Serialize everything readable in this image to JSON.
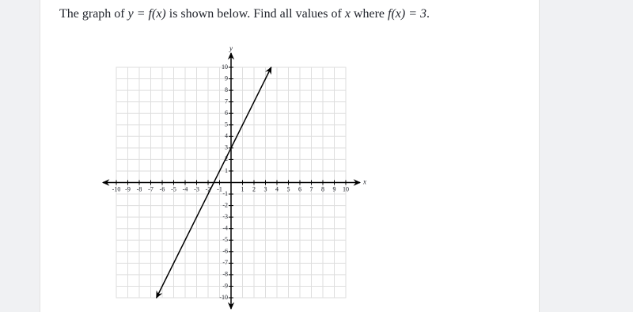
{
  "question": [
    {
      "text": "The graph of "
    },
    {
      "math": "y = f(x)"
    },
    {
      "text": " is shown below. Find all values of "
    },
    {
      "math": "x"
    },
    {
      "text": " where "
    },
    {
      "math": "f(x) = 3"
    },
    {
      "text": "."
    }
  ],
  "chart_data": {
    "type": "line",
    "x_label": "x",
    "y_label": "y",
    "xlim": [
      -10,
      10
    ],
    "ylim": [
      -10,
      10
    ],
    "xticks": [
      -10,
      -9,
      -8,
      -7,
      -6,
      -5,
      -4,
      -3,
      -2,
      -1,
      1,
      2,
      3,
      4,
      5,
      6,
      7,
      8,
      9,
      10
    ],
    "yticks": [
      -10,
      -9,
      -8,
      -7,
      -6,
      -5,
      -4,
      -3,
      -2,
      -1,
      1,
      2,
      3,
      4,
      5,
      6,
      7,
      8,
      9,
      10
    ],
    "grid": true,
    "color": "#000000",
    "x": [
      -6.5,
      3.5
    ],
    "values": [
      -10,
      10
    ]
  }
}
